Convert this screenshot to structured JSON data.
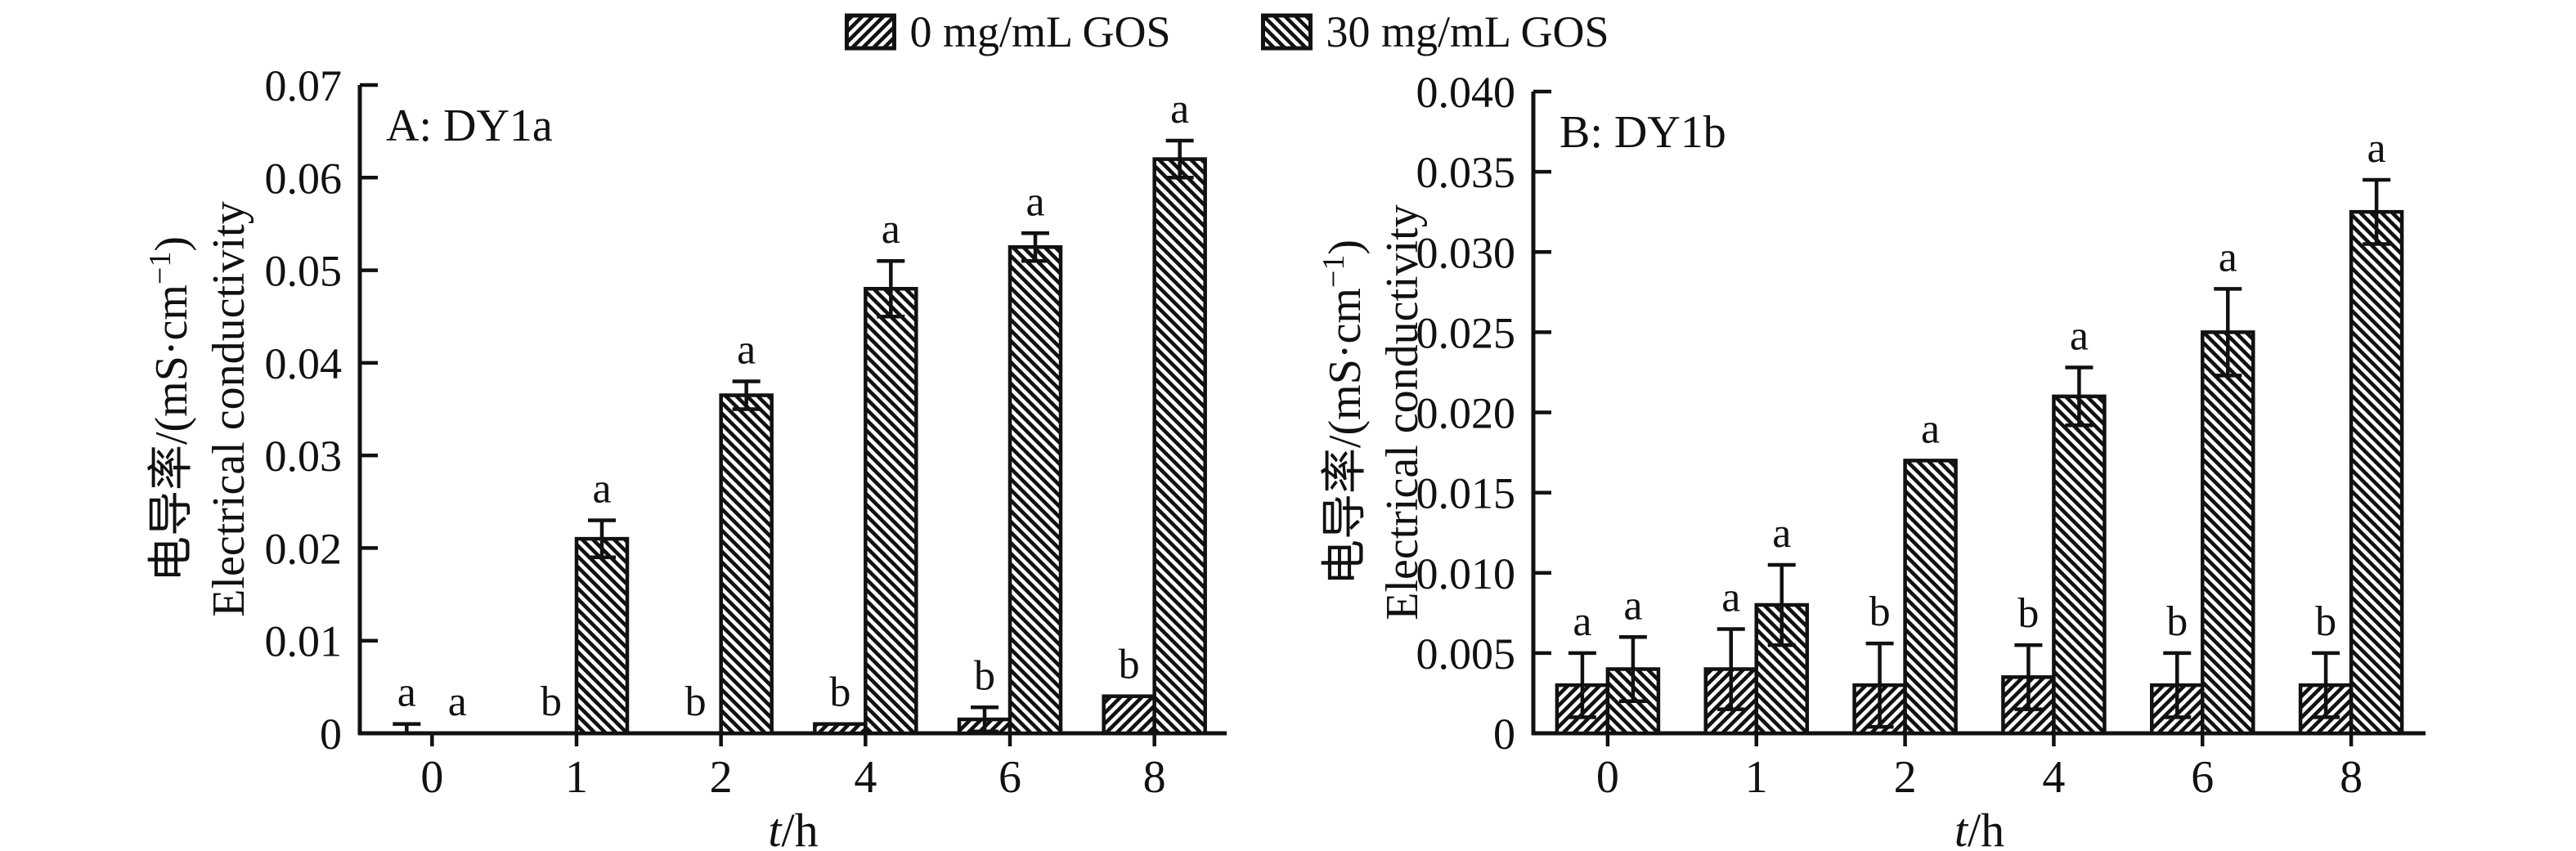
{
  "ink": "#111111",
  "background": "#ffffff",
  "legend": {
    "items": [
      {
        "label": "0 mg/mL GOS",
        "hatch": "forward",
        "icon": "hatch-forward-swatch"
      },
      {
        "label": "30 mg/mL GOS",
        "hatch": "backward",
        "icon": "hatch-backward-swatch"
      }
    ]
  },
  "chart_data": [
    {
      "type": "bar",
      "panel_label": "A: DY1a",
      "xlabel": "t/h",
      "ylabel_line1": "电导率/(mS·cm⁻¹)",
      "ylabel_line2": "Electrical conductivity",
      "categories": [
        "0",
        "1",
        "2",
        "4",
        "6",
        "8"
      ],
      "ylim": [
        0,
        0.07
      ],
      "grid": false,
      "legend_position": "top-center",
      "yticks": [
        {
          "value": 0,
          "label": "0"
        },
        {
          "value": 0.01,
          "label": "0.01"
        },
        {
          "value": 0.02,
          "label": "0.02"
        },
        {
          "value": 0.03,
          "label": "0.03"
        },
        {
          "value": 0.04,
          "label": "0.04"
        },
        {
          "value": 0.05,
          "label": "0.05"
        },
        {
          "value": 0.06,
          "label": "0.06"
        },
        {
          "value": 0.07,
          "label": "0.07"
        }
      ],
      "series": [
        {
          "name": "0 mg/mL GOS",
          "hatch": "forward",
          "values": [
            0,
            0,
            0,
            0.001,
            0.0015,
            0.004
          ],
          "errors": [
            0.001,
            0,
            0,
            0,
            0.0013,
            0
          ],
          "letters": [
            "a",
            "b",
            "b",
            "b",
            "b",
            "b"
          ]
        },
        {
          "name": "30 mg/mL GOS",
          "hatch": "backward",
          "values": [
            0,
            0.021,
            0.0365,
            0.048,
            0.0525,
            0.062
          ],
          "errors": [
            0,
            0.002,
            0.0015,
            0.003,
            0.0015,
            0.002
          ],
          "letters": [
            "a",
            "a",
            "a",
            "a",
            "a",
            "a"
          ]
        }
      ]
    },
    {
      "type": "bar",
      "panel_label": "B: DY1b",
      "xlabel": "t/h",
      "ylabel_line1": "电导率/(mS·cm⁻¹)",
      "ylabel_line2": "Electrical conductivity",
      "categories": [
        "0",
        "1",
        "2",
        "4",
        "6",
        "8"
      ],
      "ylim": [
        0,
        0.04
      ],
      "grid": false,
      "legend_position": "top-center",
      "yticks": [
        {
          "value": 0,
          "label": "0"
        },
        {
          "value": 0.005,
          "label": "0.005"
        },
        {
          "value": 0.01,
          "label": "0.010"
        },
        {
          "value": 0.015,
          "label": "0.015"
        },
        {
          "value": 0.02,
          "label": "0.020"
        },
        {
          "value": 0.025,
          "label": "0.025"
        },
        {
          "value": 0.03,
          "label": "0.030"
        },
        {
          "value": 0.035,
          "label": "0.035"
        },
        {
          "value": 0.04,
          "label": "0.040"
        }
      ],
      "series": [
        {
          "name": "0 mg/mL GOS",
          "hatch": "forward",
          "values": [
            0.003,
            0.004,
            0.003,
            0.0035,
            0.003,
            0.003
          ],
          "errors": [
            0.002,
            0.0025,
            0.0026,
            0.002,
            0.002,
            0.002
          ],
          "letters": [
            "a",
            "a",
            "b",
            "b",
            "b",
            "b"
          ]
        },
        {
          "name": "30 mg/mL GOS",
          "hatch": "backward",
          "values": [
            0.004,
            0.008,
            0.017,
            0.021,
            0.025,
            0.0325
          ],
          "errors": [
            0.002,
            0.0025,
            0,
            0.0018,
            0.0027,
            0.002
          ],
          "letters": [
            "a",
            "a",
            "a",
            "a",
            "a",
            "a"
          ]
        }
      ]
    }
  ]
}
